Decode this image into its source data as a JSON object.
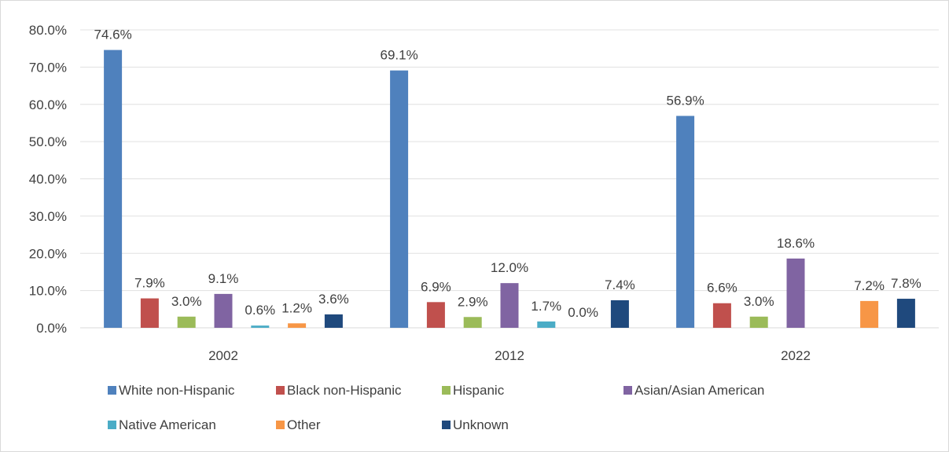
{
  "chart_data": {
    "type": "bar",
    "categories": [
      "2002",
      "2012",
      "2022"
    ],
    "series": [
      {
        "name": "White non-Hispanic",
        "color": "#4f81bd",
        "values": [
          74.6,
          69.1,
          56.9
        ],
        "labels": [
          "74.6%",
          "69.1%",
          "56.9%"
        ]
      },
      {
        "name": "Black non-Hispanic",
        "color": "#c0504d",
        "values": [
          7.9,
          6.9,
          6.6
        ],
        "labels": [
          "7.9%",
          "6.9%",
          "6.6%"
        ]
      },
      {
        "name": "Hispanic",
        "color": "#9bbb59",
        "values": [
          3.0,
          2.9,
          3.0
        ],
        "labels": [
          "3.0%",
          "2.9%",
          "3.0%"
        ]
      },
      {
        "name": "Asian/Asian American",
        "color": "#8064a2",
        "values": [
          9.1,
          12.0,
          18.6
        ],
        "labels": [
          "9.1%",
          "12.0%",
          "18.6%"
        ]
      },
      {
        "name": "Native American",
        "color": "#4bacc6",
        "values": [
          0.6,
          1.7,
          null
        ],
        "labels": [
          "0.6%",
          "1.7%",
          null
        ]
      },
      {
        "name": "Other",
        "color": "#f79646",
        "values": [
          1.2,
          0.0,
          7.2
        ],
        "labels": [
          "1.2%",
          "0.0%",
          "7.2%"
        ]
      },
      {
        "name": "Unknown",
        "color": "#1f497d",
        "values": [
          3.6,
          7.4,
          7.8
        ],
        "labels": [
          "3.6%",
          "7.4%",
          "7.8%"
        ]
      }
    ],
    "ylim": [
      0,
      80
    ],
    "yticks": [
      0,
      10,
      20,
      30,
      40,
      50,
      60,
      70,
      80
    ],
    "ytick_labels": [
      "0.0%",
      "10.0%",
      "20.0%",
      "30.0%",
      "40.0%",
      "50.0%",
      "60.0%",
      "70.0%",
      "80.0%"
    ],
    "grid": true,
    "legend_position": "bottom"
  }
}
